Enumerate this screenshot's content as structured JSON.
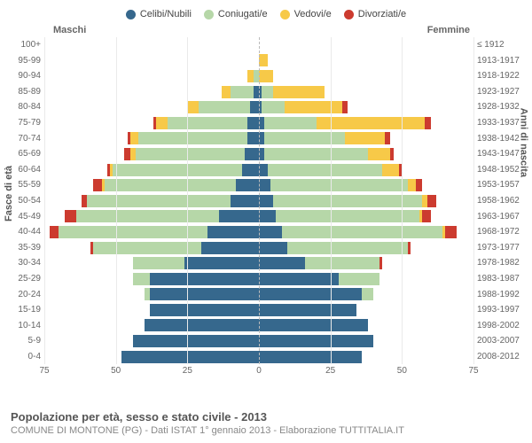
{
  "legend": [
    {
      "label": "Celibi/Nubili",
      "color": "#36688d"
    },
    {
      "label": "Coniugati/e",
      "color": "#b6d7a8"
    },
    {
      "label": "Vedovi/e",
      "color": "#f7c948"
    },
    {
      "label": "Divorziati/e",
      "color": "#cc3b2f"
    }
  ],
  "headers": {
    "left": "Maschi",
    "right": "Femmine"
  },
  "y_titles": {
    "left": "Fasce di età",
    "right": "Anni di nascita"
  },
  "max": 75,
  "x_ticks": [
    75,
    50,
    25,
    0,
    25,
    50,
    75
  ],
  "colors": {
    "celibi": "#36688d",
    "coniugati": "#b6d7a8",
    "vedovi": "#f7c948",
    "divorziati": "#cc3b2f"
  },
  "bands": [
    {
      "age": "100+",
      "birth": "≤ 1912",
      "m": {
        "c": 0,
        "co": 0,
        "v": 0,
        "d": 0
      },
      "f": {
        "c": 0,
        "co": 0,
        "v": 0,
        "d": 0
      }
    },
    {
      "age": "95-99",
      "birth": "1913-1917",
      "m": {
        "c": 0,
        "co": 0,
        "v": 0,
        "d": 0
      },
      "f": {
        "c": 0,
        "co": 0,
        "v": 3,
        "d": 0
      }
    },
    {
      "age": "90-94",
      "birth": "1918-1922",
      "m": {
        "c": 0,
        "co": 2,
        "v": 2,
        "d": 0
      },
      "f": {
        "c": 0,
        "co": 0,
        "v": 5,
        "d": 0
      }
    },
    {
      "age": "85-89",
      "birth": "1923-1927",
      "m": {
        "c": 2,
        "co": 8,
        "v": 3,
        "d": 0
      },
      "f": {
        "c": 1,
        "co": 4,
        "v": 18,
        "d": 0
      }
    },
    {
      "age": "80-84",
      "birth": "1928-1932",
      "m": {
        "c": 3,
        "co": 18,
        "v": 4,
        "d": 0
      },
      "f": {
        "c": 1,
        "co": 8,
        "v": 20,
        "d": 2
      }
    },
    {
      "age": "75-79",
      "birth": "1933-1937",
      "m": {
        "c": 4,
        "co": 28,
        "v": 4,
        "d": 1
      },
      "f": {
        "c": 2,
        "co": 18,
        "v": 38,
        "d": 2
      }
    },
    {
      "age": "70-74",
      "birth": "1938-1942",
      "m": {
        "c": 4,
        "co": 38,
        "v": 3,
        "d": 1
      },
      "f": {
        "c": 2,
        "co": 28,
        "v": 14,
        "d": 2
      }
    },
    {
      "age": "65-69",
      "birth": "1943-1947",
      "m": {
        "c": 5,
        "co": 38,
        "v": 2,
        "d": 2
      },
      "f": {
        "c": 2,
        "co": 36,
        "v": 8,
        "d": 1
      }
    },
    {
      "age": "60-64",
      "birth": "1948-1952",
      "m": {
        "c": 6,
        "co": 45,
        "v": 1,
        "d": 1
      },
      "f": {
        "c": 3,
        "co": 40,
        "v": 6,
        "d": 1
      }
    },
    {
      "age": "55-59",
      "birth": "1953-1957",
      "m": {
        "c": 8,
        "co": 46,
        "v": 1,
        "d": 3
      },
      "f": {
        "c": 4,
        "co": 48,
        "v": 3,
        "d": 2
      }
    },
    {
      "age": "50-54",
      "birth": "1958-1962",
      "m": {
        "c": 10,
        "co": 50,
        "v": 0,
        "d": 2
      },
      "f": {
        "c": 5,
        "co": 52,
        "v": 2,
        "d": 3
      }
    },
    {
      "age": "45-49",
      "birth": "1963-1967",
      "m": {
        "c": 14,
        "co": 50,
        "v": 0,
        "d": 4
      },
      "f": {
        "c": 6,
        "co": 50,
        "v": 1,
        "d": 3
      }
    },
    {
      "age": "40-44",
      "birth": "1968-1972",
      "m": {
        "c": 18,
        "co": 52,
        "v": 0,
        "d": 3
      },
      "f": {
        "c": 8,
        "co": 56,
        "v": 1,
        "d": 4
      }
    },
    {
      "age": "35-39",
      "birth": "1973-1977",
      "m": {
        "c": 20,
        "co": 38,
        "v": 0,
        "d": 1
      },
      "f": {
        "c": 10,
        "co": 42,
        "v": 0,
        "d": 1
      }
    },
    {
      "age": "30-34",
      "birth": "1978-1982",
      "m": {
        "c": 26,
        "co": 18,
        "v": 0,
        "d": 0
      },
      "f": {
        "c": 16,
        "co": 26,
        "v": 0,
        "d": 1
      }
    },
    {
      "age": "25-29",
      "birth": "1983-1987",
      "m": {
        "c": 38,
        "co": 6,
        "v": 0,
        "d": 0
      },
      "f": {
        "c": 28,
        "co": 14,
        "v": 0,
        "d": 0
      }
    },
    {
      "age": "20-24",
      "birth": "1988-1992",
      "m": {
        "c": 38,
        "co": 2,
        "v": 0,
        "d": 0
      },
      "f": {
        "c": 36,
        "co": 4,
        "v": 0,
        "d": 0
      }
    },
    {
      "age": "15-19",
      "birth": "1993-1997",
      "m": {
        "c": 38,
        "co": 0,
        "v": 0,
        "d": 0
      },
      "f": {
        "c": 34,
        "co": 0,
        "v": 0,
        "d": 0
      }
    },
    {
      "age": "10-14",
      "birth": "1998-2002",
      "m": {
        "c": 40,
        "co": 0,
        "v": 0,
        "d": 0
      },
      "f": {
        "c": 38,
        "co": 0,
        "v": 0,
        "d": 0
      }
    },
    {
      "age": "5-9",
      "birth": "2003-2007",
      "m": {
        "c": 44,
        "co": 0,
        "v": 0,
        "d": 0
      },
      "f": {
        "c": 40,
        "co": 0,
        "v": 0,
        "d": 0
      }
    },
    {
      "age": "0-4",
      "birth": "2008-2012",
      "m": {
        "c": 48,
        "co": 0,
        "v": 0,
        "d": 0
      },
      "f": {
        "c": 36,
        "co": 0,
        "v": 0,
        "d": 0
      }
    }
  ],
  "footer": {
    "title": "Popolazione per età, sesso e stato civile - 2013",
    "subtitle": "COMUNE DI MONTONE (PG) - Dati ISTAT 1° gennaio 2013 - Elaborazione TUTTITALIA.IT"
  }
}
